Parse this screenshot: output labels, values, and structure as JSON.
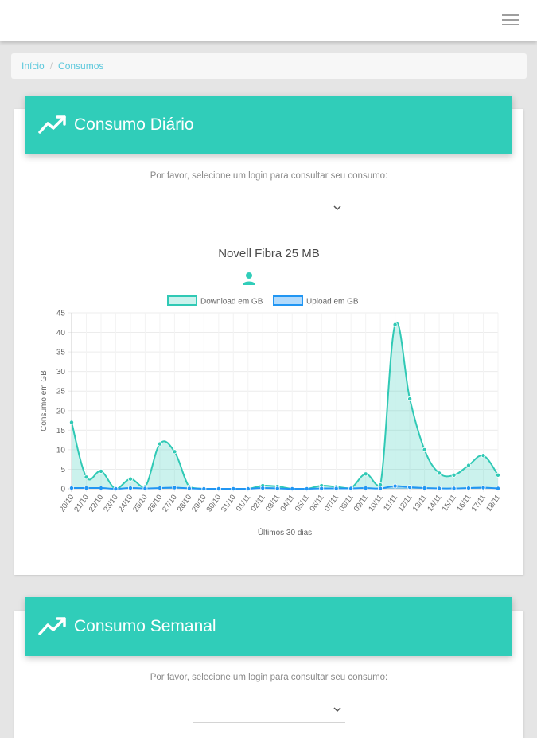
{
  "breadcrumb": {
    "home": "Início",
    "separator": "/",
    "current": "Consumos"
  },
  "daily": {
    "title": "Consumo Diário",
    "prompt": "Por favor, selecione um login para consultar seu consumo:",
    "selected_login": "",
    "plan_name": "Novell Fibra 25 MB"
  },
  "weekly": {
    "title": "Consumo Semanal",
    "prompt": "Por favor, selecione um login para consultar seu consumo:",
    "selected_login": ""
  },
  "colors": {
    "accent": "#30cdb9",
    "download_line": "#30c9b5",
    "download_fill": "rgba(48,205,185,0.25)",
    "upload_line": "#2196f3",
    "upload_fill": "rgba(33,150,243,0.35)"
  },
  "chart_data": {
    "type": "area",
    "title": "",
    "xlabel": "Últimos 30 dias",
    "ylabel": "Consumo em GB",
    "ylim": [
      0,
      45
    ],
    "yticks": [
      0,
      5,
      10,
      15,
      20,
      25,
      30,
      35,
      40,
      45
    ],
    "grid": true,
    "legend_position": "top-center",
    "categories": [
      "20/10",
      "21/10",
      "22/10",
      "23/10",
      "24/10",
      "25/10",
      "26/10",
      "27/10",
      "28/10",
      "29/10",
      "30/10",
      "31/10",
      "01/11",
      "02/11",
      "03/11",
      "04/11",
      "05/11",
      "06/11",
      "07/11",
      "08/11",
      "09/11",
      "10/11",
      "11/11",
      "12/11",
      "13/11",
      "14/11",
      "15/11",
      "16/11",
      "17/11",
      "18/11"
    ],
    "series": [
      {
        "name": "Download em GB",
        "values": [
          17,
          3,
          4.5,
          0,
          2.5,
          0.5,
          11.5,
          9.5,
          0.5,
          0,
          0,
          0,
          0,
          0.8,
          0.6,
          0,
          0,
          0.8,
          0.5,
          0.2,
          3.8,
          1,
          42,
          23,
          10,
          4,
          3.5,
          6,
          8.5,
          3.5
        ]
      },
      {
        "name": "Upload em GB",
        "values": [
          0.2,
          0.2,
          0.2,
          0,
          0.2,
          0.1,
          0.2,
          0.3,
          0.1,
          0,
          0,
          0,
          0,
          0.2,
          0.1,
          0,
          0,
          0.1,
          0.1,
          0.1,
          0.2,
          0.1,
          0.7,
          0.4,
          0.2,
          0.1,
          0.1,
          0.2,
          0.3,
          0.1
        ]
      }
    ]
  }
}
